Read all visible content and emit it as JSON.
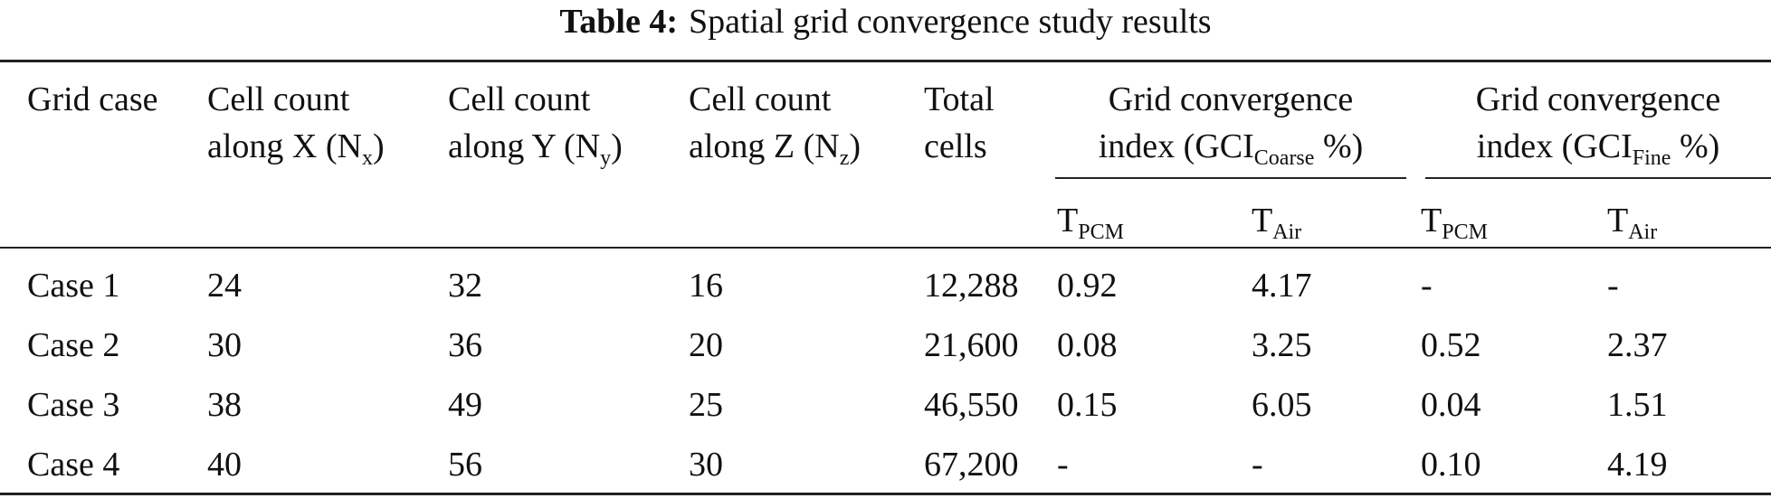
{
  "caption": {
    "label": "Table 4:",
    "text": "Spatial grid convergence study results"
  },
  "headers": {
    "grid_case": [
      "Grid case"
    ],
    "nx": {
      "line1": "Cell count",
      "prefix": "along X (N",
      "sub": "x",
      "suffix": ")"
    },
    "ny": {
      "line1": "Cell count",
      "prefix": "along Y (N",
      "sub": "y",
      "suffix": ")"
    },
    "nz": {
      "line1": "Cell count",
      "prefix": "along Z (N",
      "sub": "z",
      "suffix": ")"
    },
    "total": {
      "line1": "Total",
      "line2": "cells"
    },
    "gci_coarse": {
      "line1": "Grid convergence",
      "prefix": "index (GCI",
      "sub": "Coarse",
      "suffix": " %)"
    },
    "gci_fine": {
      "line1": "Grid convergence",
      "prefix": "index (GCI",
      "sub": "Fine",
      "suffix": " %)"
    },
    "t_pcm": {
      "base": "T",
      "sub": "PCM"
    },
    "t_air": {
      "base": "T",
      "sub": "Air"
    }
  },
  "rows": [
    [
      "Case 1",
      "24",
      "32",
      "16",
      "12,288",
      "0.92",
      "4.17",
      "-",
      "-"
    ],
    [
      "Case 2",
      "30",
      "36",
      "20",
      "21,600",
      "0.08",
      "3.25",
      "0.52",
      "2.37"
    ],
    [
      "Case 3",
      "38",
      "49",
      "25",
      "46,550",
      "0.15",
      "6.05",
      "0.04",
      "1.51"
    ],
    [
      "Case 4",
      "40",
      "56",
      "30",
      "67,200",
      "-",
      "-",
      "0.10",
      "4.19"
    ]
  ]
}
